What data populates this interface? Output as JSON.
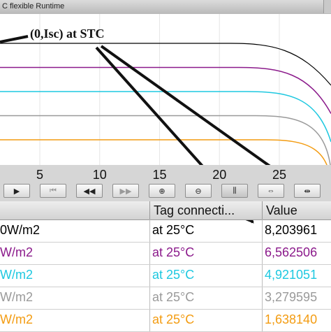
{
  "window": {
    "title": "C flexible Runtime"
  },
  "plot": {
    "annotation": "(0,Isc) at STC",
    "x_ticks": [
      "5",
      "10",
      "15",
      "20",
      "25"
    ]
  },
  "chart_data": {
    "type": "line",
    "xlabel": "",
    "ylabel": "",
    "x_ticks": [
      5,
      10,
      15,
      20,
      25
    ],
    "series": [
      {
        "color": "#000000",
        "level": 8.203961
      },
      {
        "color": "#8b1a8b",
        "level": 6.562506
      },
      {
        "color": "#1ec8e0",
        "level": 4.921051
      },
      {
        "color": "#9a9a9a",
        "level": 3.279595
      },
      {
        "color": "#f39c12",
        "level": 1.63814
      }
    ]
  },
  "toolbar": {
    "buttons": [
      {
        "icon": "play-icon",
        "glyph": "▶",
        "enabled": true
      },
      {
        "icon": "first-icon",
        "glyph": "⏮",
        "enabled": false
      },
      {
        "icon": "rewind-icon",
        "glyph": "◀◀",
        "enabled": true
      },
      {
        "icon": "fast-forward-icon",
        "glyph": "▶▶",
        "enabled": false
      },
      {
        "icon": "zoom-in-icon",
        "glyph": "⊕",
        "enabled": true
      },
      {
        "icon": "zoom-out-icon",
        "glyph": "⊖",
        "enabled": true
      },
      {
        "icon": "ruler-icon",
        "glyph": "⫼",
        "enabled": true
      },
      {
        "icon": "move-axis-icon",
        "glyph": "⇔",
        "enabled": true
      },
      {
        "icon": "move-ruler-icon",
        "glyph": "⇹",
        "enabled": true
      }
    ]
  },
  "table": {
    "headers": {
      "tag": "Tag connecti...",
      "value": "Value"
    },
    "rows": [
      {
        "name": "0W/m2",
        "tag": "at 25°C",
        "value": "8,203961",
        "color": "#000000"
      },
      {
        "name": "W/m2",
        "tag": "at 25°C",
        "value": "6,562506",
        "color": "#8b1a8b"
      },
      {
        "name": "W/m2",
        "tag": "at 25°C",
        "value": "4,921051",
        "color": "#1ec8e0"
      },
      {
        "name": "W/m2",
        "tag": "at 25°C",
        "value": "3,279595",
        "color": "#9a9a9a"
      },
      {
        "name": "W/m2",
        "tag": "at 25°C",
        "value": "1,638140",
        "color": "#f39c12"
      }
    ]
  }
}
